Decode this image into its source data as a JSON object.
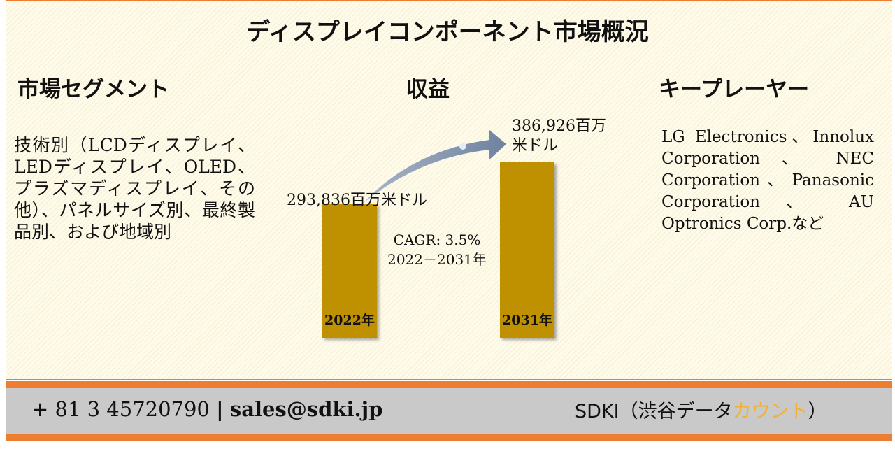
{
  "title": "ディスプレイコンポーネント市場概況",
  "segments": {
    "heading": "市場セグメント",
    "text": "技術別（LCDディスプレイ、LEDディスプレイ、OLED、プラズマディスプレイ、その他）、パネルサイズ別、最終製品別、および地域別"
  },
  "revenue": {
    "heading": "収益",
    "bars": {
      "categories": [
        "2022年",
        "2031年"
      ],
      "values": [
        293836,
        386926
      ],
      "value_labels": [
        "293,836百万米ドル",
        "386,926百万米ドル"
      ],
      "color": "#bf9000"
    },
    "cagr": "CAGR: 3.5%",
    "period": "2022－2031年"
  },
  "players": {
    "heading": "キープレーヤー",
    "text": "LG Electronics、Innolux Corporation 、 NEC Corporation 、 Panasonic Corporation 、 AU Optronics Corp.など"
  },
  "footer": {
    "phone": "+ 81 3 45720790",
    "separator": "|",
    "email": "sales@sdki.jp",
    "brand": "SDKI（渋谷データ",
    "brand_highlight": "カウント",
    "brand_end": "）"
  }
}
